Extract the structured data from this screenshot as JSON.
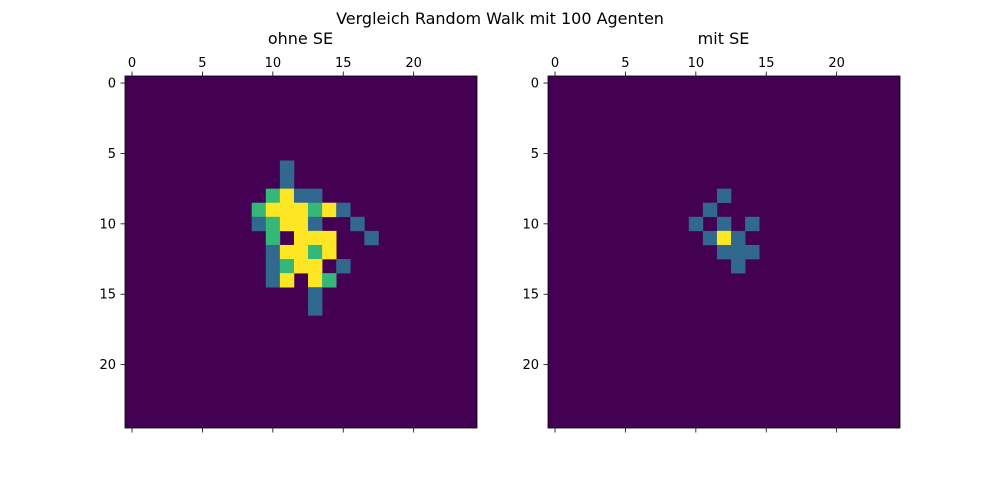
{
  "title": "Vergleich Random Walk mit 100 Agenten",
  "chart_data": [
    {
      "type": "heatmap",
      "title": "ohne SE",
      "grid_size": 25,
      "x_ticks": [
        0,
        5,
        10,
        15,
        20
      ],
      "y_ticks": [
        0,
        5,
        10,
        15,
        20
      ],
      "xlim": [
        -0.5,
        24.5
      ],
      "ylim": [
        24.5,
        -0.5
      ],
      "x_axis_position": "top",
      "colormap": "viridis",
      "color_levels": {
        "0": "#440154",
        "1": "#31688e",
        "2": "#35b779",
        "3": "#fde725"
      },
      "cells": [
        [
          11,
          6,
          1
        ],
        [
          11,
          7,
          1
        ],
        [
          10,
          8,
          2
        ],
        [
          11,
          8,
          3
        ],
        [
          12,
          8,
          1
        ],
        [
          13,
          8,
          1
        ],
        [
          9,
          9,
          2
        ],
        [
          10,
          9,
          3
        ],
        [
          11,
          9,
          3
        ],
        [
          12,
          9,
          3
        ],
        [
          13,
          9,
          2
        ],
        [
          14,
          9,
          3
        ],
        [
          15,
          9,
          1
        ],
        [
          9,
          10,
          1
        ],
        [
          10,
          10,
          2
        ],
        [
          11,
          10,
          3
        ],
        [
          12,
          10,
          3
        ],
        [
          13,
          10,
          1
        ],
        [
          16,
          10,
          1
        ],
        [
          10,
          11,
          2
        ],
        [
          12,
          11,
          3
        ],
        [
          13,
          11,
          3
        ],
        [
          14,
          11,
          3
        ],
        [
          17,
          11,
          1
        ],
        [
          10,
          12,
          1
        ],
        [
          11,
          12,
          3
        ],
        [
          12,
          12,
          3
        ],
        [
          13,
          12,
          2
        ],
        [
          14,
          12,
          3
        ],
        [
          10,
          13,
          1
        ],
        [
          11,
          13,
          2
        ],
        [
          12,
          13,
          3
        ],
        [
          13,
          13,
          3
        ],
        [
          15,
          13,
          1
        ],
        [
          10,
          14,
          1
        ],
        [
          11,
          14,
          3
        ],
        [
          13,
          14,
          3
        ],
        [
          14,
          14,
          2
        ],
        [
          13,
          15,
          1
        ],
        [
          13,
          16,
          1
        ]
      ]
    },
    {
      "type": "heatmap",
      "title": "mit SE",
      "grid_size": 25,
      "x_ticks": [
        0,
        5,
        10,
        15,
        20
      ],
      "y_ticks": [
        0,
        5,
        10,
        15,
        20
      ],
      "xlim": [
        -0.5,
        24.5
      ],
      "ylim": [
        24.5,
        -0.5
      ],
      "x_axis_position": "top",
      "colormap": "viridis",
      "color_levels": {
        "0": "#440154",
        "1": "#31688e",
        "2": "#35b779",
        "3": "#fde725"
      },
      "cells": [
        [
          12,
          8,
          1
        ],
        [
          11,
          9,
          1
        ],
        [
          10,
          10,
          1
        ],
        [
          12,
          10,
          1
        ],
        [
          14,
          10,
          1
        ],
        [
          11,
          11,
          1
        ],
        [
          12,
          11,
          3
        ],
        [
          13,
          11,
          1
        ],
        [
          12,
          12,
          1
        ],
        [
          13,
          12,
          1
        ],
        [
          14,
          12,
          1
        ],
        [
          13,
          13,
          1
        ]
      ]
    }
  ]
}
